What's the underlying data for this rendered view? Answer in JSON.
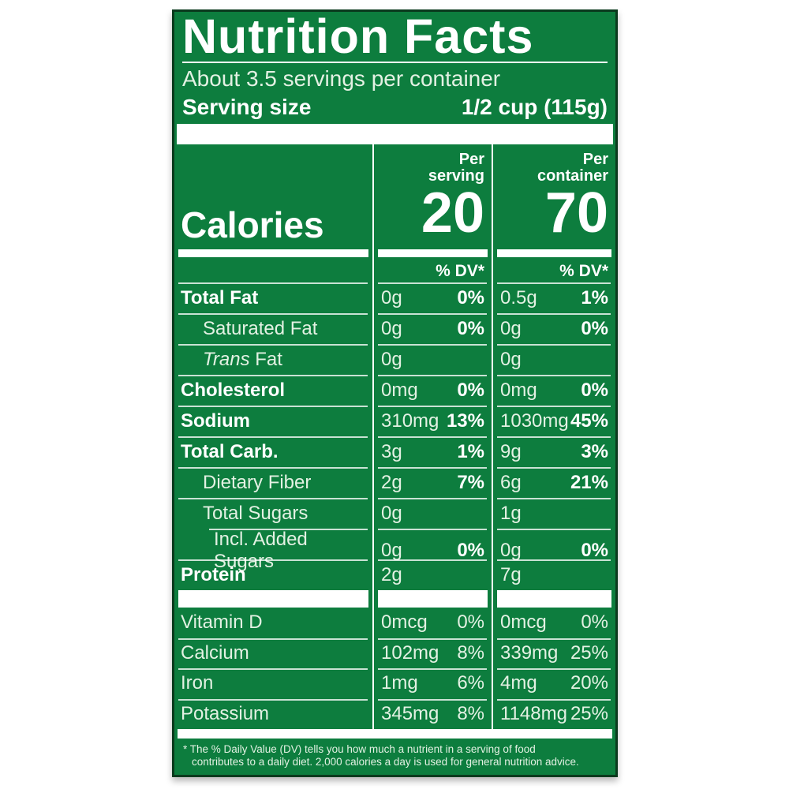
{
  "colors": {
    "label_green": "#0d7d3e",
    "border_dark": "#0a3a1d",
    "text_regular": "#e3f1e3",
    "text_bold": "#ffffff"
  },
  "header": {
    "title": "Nutrition Facts",
    "servings_per_container": "About 3.5 servings per container",
    "serving_size_label": "Serving size",
    "serving_size_value": "1/2 cup (115g)"
  },
  "calories": {
    "label": "Calories",
    "per_serving_header_top": "Per",
    "per_serving_header_bottom": "serving",
    "per_serving_value": "20",
    "per_container_header_top": "Per",
    "per_container_header_bottom": "container",
    "per_container_value": "70",
    "dv_header": "% DV*"
  },
  "nutrient_rows": [
    {
      "label": "Total Fat",
      "bold": true,
      "indent": 0,
      "per_serving": "0g",
      "per_serving_dv": "0%",
      "per_container": "0.5g",
      "per_container_dv": "1%"
    },
    {
      "label": "Saturated Fat",
      "bold": false,
      "indent": 1,
      "per_serving": "0g",
      "per_serving_dv": "0%",
      "per_container": "0g",
      "per_container_dv": "0%"
    },
    {
      "label_italic": "Trans",
      "label": " Fat",
      "bold": false,
      "indent": 1,
      "per_serving": "0g",
      "per_serving_dv": "",
      "per_container": "0g",
      "per_container_dv": ""
    },
    {
      "label": "Cholesterol",
      "bold": true,
      "indent": 0,
      "per_serving": "0mg",
      "per_serving_dv": "0%",
      "per_container": "0mg",
      "per_container_dv": "0%"
    },
    {
      "label": "Sodium",
      "bold": true,
      "indent": 0,
      "per_serving": "310mg",
      "per_serving_dv": "13%",
      "per_container": "1030mg",
      "per_container_dv": "45%"
    },
    {
      "label": "Total Carb.",
      "bold": true,
      "indent": 0,
      "per_serving": "3g",
      "per_serving_dv": "1%",
      "per_container": "9g",
      "per_container_dv": "3%"
    },
    {
      "label": "Dietary Fiber",
      "bold": false,
      "indent": 1,
      "per_serving": "2g",
      "per_serving_dv": "7%",
      "per_container": "6g",
      "per_container_dv": "21%"
    },
    {
      "label": "Total Sugars",
      "bold": false,
      "indent": 1,
      "per_serving": "0g",
      "per_serving_dv": "",
      "per_container": "1g",
      "per_container_dv": ""
    },
    {
      "label": "Incl. Added Sugars",
      "bold": false,
      "indent": 2,
      "per_serving": "0g",
      "per_serving_dv": "0%",
      "per_container": "0g",
      "per_container_dv": "0%"
    },
    {
      "label": "Protein",
      "bold": true,
      "indent": 0,
      "per_serving": "2g",
      "per_serving_dv": "",
      "per_container": "7g",
      "per_container_dv": ""
    }
  ],
  "vitamin_rows": [
    {
      "label": "Vitamin D",
      "per_serving": "0mcg",
      "per_serving_dv": "0%",
      "per_container": "0mcg",
      "per_container_dv": "0%"
    },
    {
      "label": "Calcium",
      "per_serving": "102mg",
      "per_serving_dv": "8%",
      "per_container": "339mg",
      "per_container_dv": "25%"
    },
    {
      "label": "Iron",
      "per_serving": "1mg",
      "per_serving_dv": "6%",
      "per_container": "4mg",
      "per_container_dv": "20%"
    },
    {
      "label": "Potassium",
      "per_serving": "345mg",
      "per_serving_dv": "8%",
      "per_container": "1148mg",
      "per_container_dv": "25%"
    }
  ],
  "footnote": {
    "line1": "* The % Daily Value (DV) tells you how much a nutrient in a serving of food",
    "line2": "contributes to a daily diet. 2,000 calories a day is used for general nutrition advice."
  }
}
